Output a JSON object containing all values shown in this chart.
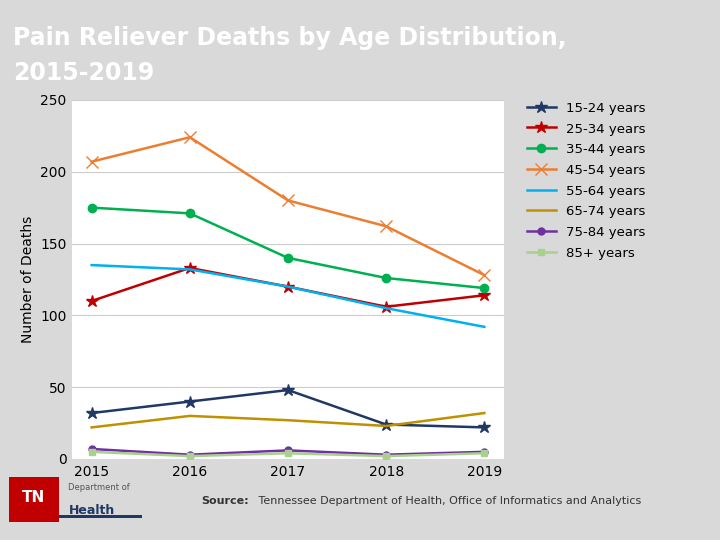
{
  "title_line1": "Pain Reliever Deaths by Age Distribution,",
  "title_line2": "2015-2019",
  "ylabel": "Number of Deaths",
  "years": [
    2015,
    2016,
    2017,
    2018,
    2019
  ],
  "series": {
    "15-24 years": {
      "values": [
        32,
        40,
        48,
        24,
        22
      ],
      "color": "#1F3864",
      "marker": "*",
      "markersize": 9
    },
    "25-34 years": {
      "values": [
        110,
        133,
        120,
        106,
        114
      ],
      "color": "#C00000",
      "marker": "*",
      "markersize": 9
    },
    "35-44 years": {
      "values": [
        175,
        171,
        140,
        126,
        119
      ],
      "color": "#00B050",
      "marker": "o",
      "markersize": 6
    },
    "45-54 years": {
      "values": [
        207,
        224,
        180,
        162,
        128
      ],
      "color": "#ED7D31",
      "marker": "x",
      "markersize": 8
    },
    "55-64 years": {
      "values": [
        135,
        132,
        120,
        105,
        92
      ],
      "color": "#00B0F0",
      "marker": null,
      "markersize": 0
    },
    "65-74 years": {
      "values": [
        22,
        30,
        27,
        23,
        32
      ],
      "color": "#BF9000",
      "marker": null,
      "markersize": 0
    },
    "75-84 years": {
      "values": [
        7,
        3,
        6,
        3,
        5
      ],
      "color": "#7030A0",
      "marker": "o",
      "markersize": 5
    },
    "85+ years": {
      "values": [
        5,
        2,
        4,
        2,
        4
      ],
      "color": "#A9D18E",
      "marker": "s",
      "markersize": 5
    }
  },
  "ylim": [
    0,
    250
  ],
  "yticks": [
    0,
    50,
    100,
    150,
    200,
    250
  ],
  "title_bg_color": "#1F3864",
  "title_text_color": "#FFFFFF",
  "plot_bg_color": "#FFFFFF",
  "footer_bg_color": "#D9D9D9",
  "source_bold": "Source:",
  "source_rest": " Tennessee Department of Health, Office of Informatics and Analytics",
  "title_fontsize": 17,
  "axis_fontsize": 10,
  "legend_fontsize": 9.5,
  "tn_red": "#C00000",
  "tn_navy": "#1F3864"
}
